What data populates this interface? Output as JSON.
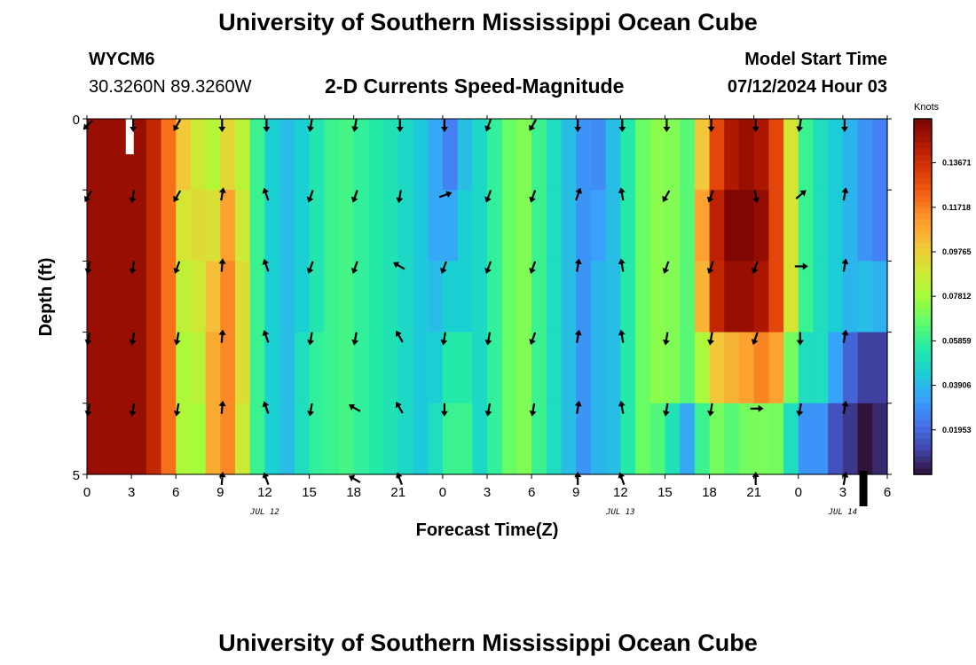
{
  "header": {
    "title": "University of Southern Mississippi Ocean Cube",
    "station": "WYCM6",
    "coords": "30.3260N  89.3260W",
    "subtitle": "2-D Currents Speed-Magnitude",
    "model_start_label": "Model Start Time",
    "model_start_value": "07/12/2024 Hour 03"
  },
  "footer": {
    "title": "University of Southern Mississippi Ocean Cube"
  },
  "chart_data": {
    "type": "heatmap",
    "xlabel": "Forecast Time(Z)",
    "ylabel": "Depth (ft)",
    "x_ticks": [
      "0",
      "3",
      "6",
      "9",
      "12",
      "15",
      "18",
      "21",
      "0",
      "3",
      "6",
      "9",
      "12",
      "15",
      "18",
      "21",
      "0",
      "3",
      "6"
    ],
    "y_ticks": [
      "0",
      "5"
    ],
    "ylim": [
      0,
      5
    ],
    "date_labels": [
      {
        "label": "JUL 12",
        "x_hour": 12
      },
      {
        "label": "JUL 13",
        "x_hour": 36
      },
      {
        "label": "JUL 14",
        "x_hour": 51
      }
    ],
    "colorbar": {
      "units": "Knots",
      "vmin": 0.0,
      "vmax": 0.156,
      "tick_labels": [
        "0.13671",
        "0.11718",
        "0.09765",
        "0.07812",
        "0.05859",
        "0.03906",
        "0.01953"
      ],
      "tick_values": [
        0.13671,
        0.11718,
        0.09765,
        0.07812,
        0.05859,
        0.03906,
        0.01953
      ],
      "colors": [
        "#30123b",
        "#4145ab",
        "#4675ed",
        "#39a2fc",
        "#1bcfd4",
        "#24eca6",
        "#61fc6c",
        "#a4fc3b",
        "#d1e834",
        "#f3c63a",
        "#fe9b2d",
        "#f36315",
        "#d93806",
        "#b11901",
        "#7a0403"
      ]
    },
    "depth_levels": 5,
    "hours_per_column": 1,
    "columns": 54,
    "speed_profile_knots": [
      0.15,
      0.15,
      0.15,
      0.15,
      0.14,
      0.12,
      0.1,
      0.088,
      0.082,
      0.095,
      0.083,
      0.06,
      0.045,
      0.04,
      0.045,
      0.053,
      0.06,
      0.062,
      0.058,
      0.055,
      0.052,
      0.048,
      0.043,
      0.035,
      0.025,
      0.04,
      0.048,
      0.058,
      0.068,
      0.072,
      0.06,
      0.05,
      0.04,
      0.03,
      0.028,
      0.04,
      0.055,
      0.068,
      0.074,
      0.072,
      0.065,
      0.1,
      0.13,
      0.145,
      0.15,
      0.146,
      0.13,
      0.09,
      0.06,
      0.05,
      0.044,
      0.038,
      0.03,
      0.025
    ],
    "depth_row_modifier": [
      [
        0,
        0,
        0,
        0,
        0,
        0,
        0,
        0,
        0,
        0,
        0,
        0,
        0,
        0,
        0,
        0,
        0,
        0,
        0,
        0,
        0,
        0,
        0,
        0,
        0,
        0,
        0,
        0,
        0,
        0,
        0,
        0,
        0,
        0,
        0,
        0,
        0,
        0,
        0,
        0,
        0,
        0,
        0,
        0,
        0,
        0,
        0,
        0,
        0,
        0,
        0,
        0,
        0,
        0
      ],
      [
        0,
        0,
        0,
        0,
        0,
        0,
        -0.01,
        0.005,
        0.01,
        0.015,
        0.005,
        0,
        0,
        0,
        0,
        0,
        0,
        0,
        0,
        0,
        0,
        0,
        0,
        0,
        0.01,
        0.005,
        0,
        0,
        0,
        0,
        0,
        0,
        0,
        0,
        0.005,
        0,
        0,
        0,
        0,
        0,
        0,
        0.01,
        0.012,
        0.01,
        0.005,
        0.005,
        0,
        0,
        0,
        0,
        0,
        0,
        0,
        0
      ],
      [
        0,
        0,
        0,
        0,
        0,
        0,
        -0.015,
        0,
        0.02,
        0.02,
        0.01,
        0,
        0,
        0,
        0,
        0,
        0,
        0,
        0,
        0,
        0,
        0,
        0,
        0.005,
        0.02,
        0.005,
        0,
        0,
        0,
        0,
        0,
        0,
        0,
        0,
        0.01,
        0,
        0,
        0,
        0,
        0,
        0,
        0.005,
        0.01,
        0.005,
        0,
        0,
        0,
        0,
        0,
        0,
        0,
        0,
        0.01,
        0.012
      ],
      [
        0,
        0,
        0,
        0,
        0,
        0,
        -0.02,
        -0.005,
        0.025,
        0.02,
        0.01,
        0,
        0,
        0,
        0.005,
        0.005,
        0,
        0,
        0,
        0,
        0,
        0,
        0,
        0.01,
        0.03,
        0.015,
        0,
        0,
        0,
        0,
        0,
        0,
        0,
        0,
        0.01,
        0,
        0,
        0,
        0,
        0,
        0,
        -0.02,
        -0.03,
        -0.04,
        -0.04,
        -0.03,
        -0.02,
        -0.02,
        -0.01,
        0,
        -0.01,
        -0.02,
        -0.02,
        -0.015
      ],
      [
        0,
        0,
        0,
        0,
        0,
        0,
        -0.02,
        -0.01,
        0.025,
        0.02,
        0.005,
        0,
        0,
        0,
        0.005,
        0.005,
        0,
        0,
        0,
        0,
        0,
        0,
        0,
        0.015,
        0.035,
        0.02,
        0,
        0,
        0,
        0,
        0,
        0,
        0,
        0,
        0.01,
        0,
        0,
        0,
        -0.01,
        -0.02,
        -0.03,
        -0.04,
        -0.06,
        -0.08,
        -0.08,
        -0.075,
        -0.06,
        -0.04,
        -0.03,
        -0.02,
        -0.03,
        -0.03,
        -0.03,
        -0.02
      ]
    ],
    "arrows": [
      {
        "depth_row": 0,
        "hours": [
          0,
          3,
          6,
          9,
          12,
          15,
          18,
          21,
          24,
          27,
          30,
          33,
          36,
          39,
          42,
          45,
          48,
          51
        ],
        "angles_deg": [
          135,
          90,
          120,
          90,
          90,
          100,
          100,
          90,
          90,
          110,
          120,
          90,
          90,
          90,
          90,
          90,
          100,
          90
        ]
      },
      {
        "depth_row": 1,
        "hours": [
          0,
          3,
          6,
          9,
          12,
          15,
          18,
          21,
          24,
          27,
          30,
          33,
          36,
          39,
          42,
          45,
          48,
          51
        ],
        "angles_deg": [
          120,
          100,
          120,
          -80,
          -110,
          110,
          110,
          100,
          -20,
          110,
          110,
          -70,
          -100,
          120,
          110,
          80,
          -40,
          -80
        ]
      },
      {
        "depth_row": 2,
        "hours": [
          0,
          3,
          6,
          9,
          12,
          15,
          18,
          21,
          24,
          27,
          30,
          33,
          36,
          39,
          42,
          45,
          48,
          51
        ],
        "angles_deg": [
          100,
          100,
          110,
          -85,
          -110,
          110,
          110,
          -150,
          110,
          110,
          110,
          -80,
          -100,
          110,
          110,
          110,
          0,
          -80
        ]
      },
      {
        "depth_row": 3,
        "hours": [
          0,
          3,
          6,
          9,
          12,
          15,
          18,
          21,
          24,
          27,
          30,
          33,
          36,
          39,
          42,
          45,
          48,
          51
        ],
        "angles_deg": [
          100,
          100,
          100,
          -85,
          -110,
          100,
          100,
          -120,
          100,
          100,
          110,
          -80,
          -100,
          100,
          100,
          110,
          90,
          -80
        ]
      },
      {
        "depth_row": 4,
        "hours": [
          0,
          3,
          6,
          9,
          12,
          15,
          18,
          21,
          24,
          27,
          30,
          33,
          36,
          39,
          42,
          45,
          48,
          51
        ],
        "angles_deg": [
          100,
          100,
          100,
          -85,
          -110,
          100,
          -150,
          -120,
          90,
          100,
          100,
          -80,
          -100,
          100,
          100,
          0,
          100,
          -80
        ]
      },
      {
        "depth_row": 5,
        "hours": [
          9,
          12,
          18,
          21,
          33,
          36,
          45,
          51
        ],
        "angles_deg": [
          -85,
          -110,
          -150,
          -110,
          -90,
          -110,
          -90,
          -80
        ]
      }
    ],
    "missing_cells": [
      {
        "hour": 2.5,
        "depth_row": 0,
        "kind": "white"
      },
      {
        "hour": 52,
        "depth_row": 4,
        "kind": "black"
      }
    ]
  }
}
